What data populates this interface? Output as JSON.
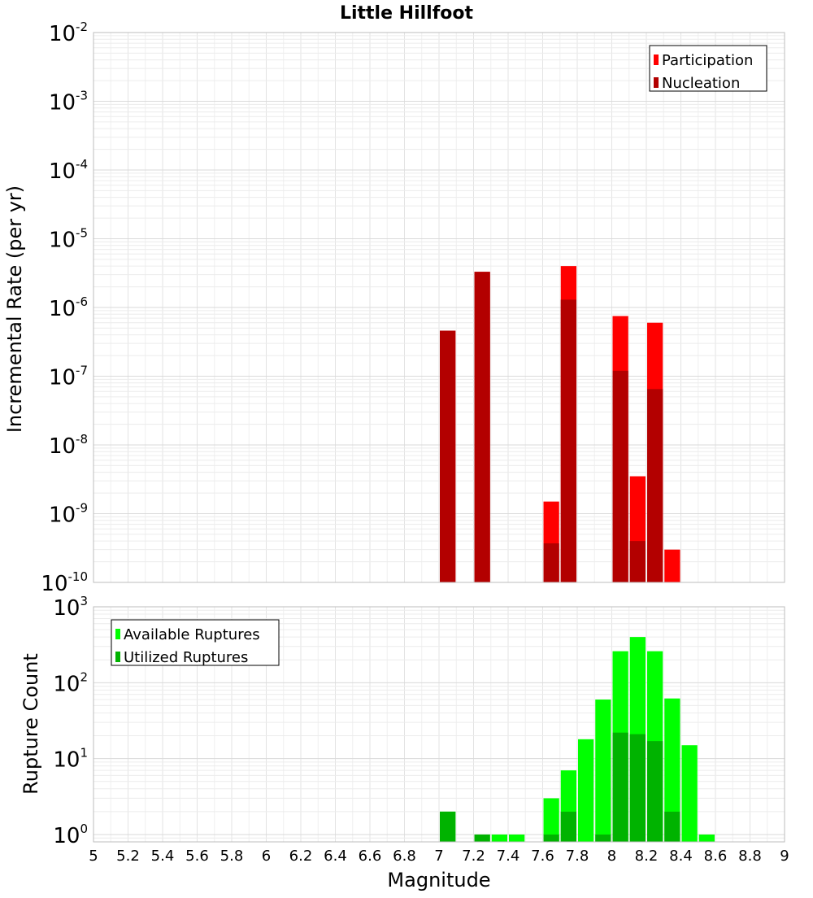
{
  "chart_data": [
    {
      "type": "bar",
      "title": "Little Hillfoot",
      "ylabel": "Incremental Rate (per yr)",
      "xlabel": "",
      "y_scale": "log",
      "ylim": [
        1e-10,
        0.01
      ],
      "xlim": [
        5,
        9
      ],
      "bin_width": 0.1,
      "grid": true,
      "legend_position": "top-right",
      "x": [
        7.05,
        7.25,
        7.65,
        7.75,
        8.05,
        8.15,
        8.25,
        8.35
      ],
      "series": [
        {
          "name": "Participation",
          "color": "#ff0000",
          "values": [
            4.6e-07,
            3.3e-06,
            1.5e-09,
            4e-06,
            7.5e-07,
            3.5e-09,
            6e-07,
            3e-10
          ]
        },
        {
          "name": "Nucleation",
          "color": "#b30000",
          "values": [
            4.6e-07,
            3.3e-06,
            3.7e-10,
            1.3e-06,
            1.2e-07,
            4e-10,
            6.5e-08,
            null
          ]
        }
      ]
    },
    {
      "type": "bar",
      "title": "",
      "ylabel": "Rupture Count",
      "xlabel": "Magnitude",
      "y_scale": "log",
      "ylim": [
        0.8,
        1000
      ],
      "xlim": [
        5,
        9
      ],
      "bin_width": 0.1,
      "grid": true,
      "legend_position": "top-left",
      "x": [
        7.05,
        7.25,
        7.35,
        7.45,
        7.65,
        7.75,
        7.85,
        7.95,
        8.05,
        8.15,
        8.25,
        8.35,
        8.45,
        8.55
      ],
      "series": [
        {
          "name": "Available Ruptures",
          "color": "#00ff00",
          "values": [
            2,
            1,
            1,
            1,
            3,
            7,
            18,
            60,
            260,
            400,
            260,
            62,
            15,
            1
          ]
        },
        {
          "name": "Utilized Ruptures",
          "color": "#00b300",
          "values": [
            2,
            1,
            null,
            null,
            1,
            2,
            null,
            1,
            22,
            21,
            17,
            2,
            null,
            null
          ]
        }
      ]
    }
  ],
  "x_ticks": [
    "5",
    "5.2",
    "5.4",
    "5.6",
    "5.8",
    "6",
    "6.2",
    "6.4",
    "6.6",
    "6.8",
    "7",
    "7.2",
    "7.4",
    "7.6",
    "7.8",
    "8",
    "8.2",
    "8.4",
    "8.6",
    "8.8",
    "9"
  ],
  "top_y_ticks": [
    {
      "base": "10",
      "exp": "-2"
    },
    {
      "base": "10",
      "exp": "-3"
    },
    {
      "base": "10",
      "exp": "-4"
    },
    {
      "base": "10",
      "exp": "-5"
    },
    {
      "base": "10",
      "exp": "-6"
    },
    {
      "base": "10",
      "exp": "-7"
    },
    {
      "base": "10",
      "exp": "-8"
    },
    {
      "base": "10",
      "exp": "-9"
    },
    {
      "base": "10",
      "exp": "-10"
    }
  ],
  "bottom_y_ticks": [
    {
      "base": "10",
      "exp": "3"
    },
    {
      "base": "10",
      "exp": "2"
    },
    {
      "base": "10",
      "exp": "1"
    },
    {
      "base": "10",
      "exp": "0"
    }
  ]
}
